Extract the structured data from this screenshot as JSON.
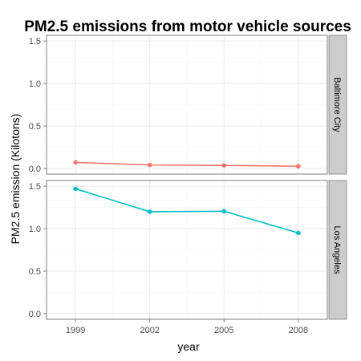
{
  "chart_data": {
    "type": "line",
    "title": "PM2.5 emissions from motor vehicle sources",
    "xlabel": "year",
    "ylabel": "PM2.5 emission (Kilotons)",
    "x": [
      1999,
      2002,
      2005,
      2008
    ],
    "x_ticks": [
      "1999",
      "2002",
      "2005",
      "2008"
    ],
    "y_ticks": [
      "0.0",
      "0.5",
      "1.0",
      "1.5"
    ],
    "ylim": [
      0,
      1.5
    ],
    "xlim": [
      1999,
      2008
    ],
    "grid": true,
    "facets": [
      {
        "label": "Baltimore City",
        "color": "#F8766D",
        "values": [
          0.07,
          0.04,
          0.035,
          0.025
        ]
      },
      {
        "label": "Los Angeles",
        "color": "#00BFC4",
        "values": [
          1.47,
          1.2,
          1.205,
          0.95
        ]
      }
    ],
    "colors": {
      "panel_border": "#7f7f7f",
      "strip_fill": "#cccccc",
      "grid_major": "#ebebeb",
      "grid_minor": "#f5f5f5",
      "tick": "#7f7f7f"
    }
  }
}
